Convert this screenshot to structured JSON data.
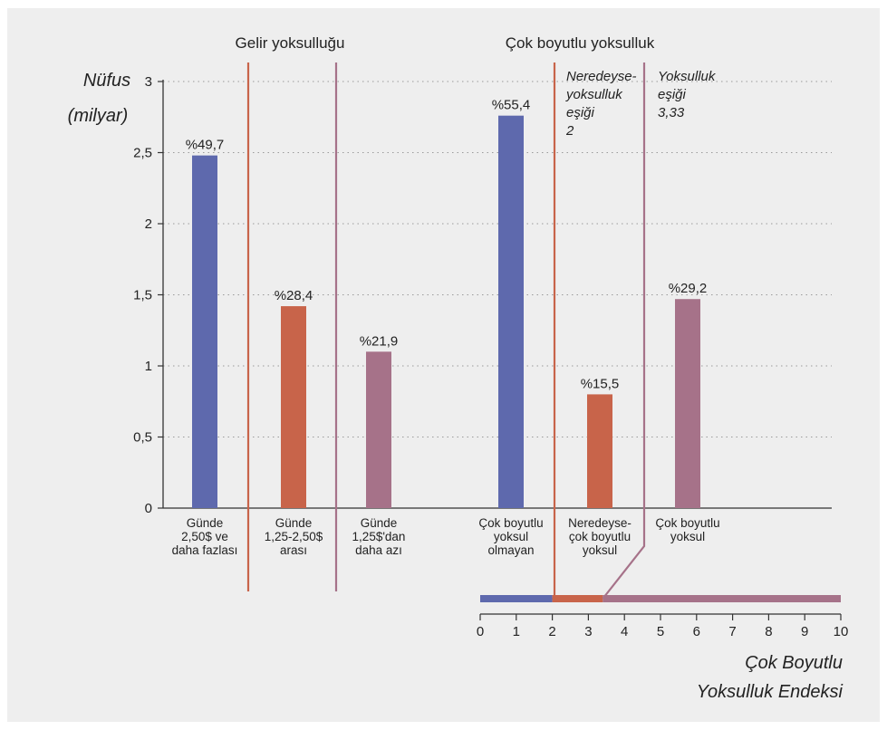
{
  "chart_data": {
    "type": "bar",
    "section_titles": [
      "Gelir yoksulluğu",
      "Çok boyutlu yoksulluk"
    ],
    "ylabel": [
      "Nüfus",
      "(milyar)"
    ],
    "ylim": [
      0,
      3
    ],
    "yticks": [
      "0",
      "0,5",
      "1",
      "1,5",
      "2",
      "2,5",
      "3"
    ],
    "grid": true,
    "bars": [
      {
        "lines": [
          "Günde",
          "2,50$ ve",
          "daha fazlası"
        ],
        "value": 2.48,
        "label": "%49,7",
        "color": "#5e69ad"
      },
      {
        "lines": [
          "Günde",
          "1,25-2,50$",
          "arası"
        ],
        "value": 1.42,
        "label": "%28,4",
        "color": "#c8644a"
      },
      {
        "lines": [
          "Günde",
          "1,25$'dan",
          "daha azı"
        ],
        "value": 1.1,
        "label": "%21,9",
        "color": "#a67289"
      },
      {
        "lines": [
          "Çok boyutlu",
          "yoksul",
          "olmayan"
        ],
        "value": 2.76,
        "label": "%55,4",
        "color": "#5e69ad"
      },
      {
        "lines": [
          "Neredeyse-",
          "çok boyutlu",
          "yoksul"
        ],
        "value": 0.8,
        "label": "%15,5",
        "color": "#c8644a"
      },
      {
        "lines": [
          "Çok boyutlu",
          "yoksul"
        ],
        "value": 1.47,
        "label": "%29,2",
        "color": "#a67289"
      }
    ],
    "thresholds": [
      {
        "lines": [
          "Neredeyse-",
          "yoksulluk",
          "eşiği",
          "2"
        ],
        "value": 2,
        "color": "#c8644a"
      },
      {
        "lines": [
          "Yoksulluk",
          "eşiği",
          "3,33"
        ],
        "value": 3.33,
        "color": "#a67289"
      }
    ],
    "index_axis": {
      "ticks": [
        "0",
        "1",
        "2",
        "3",
        "4",
        "5",
        "6",
        "7",
        "8",
        "9",
        "10"
      ],
      "label": [
        "Çok Boyutlu",
        "Yoksulluk Endeksi"
      ],
      "segments": [
        {
          "from": 0,
          "to": 2,
          "color": "#5e69ad"
        },
        {
          "from": 2,
          "to": 3.4,
          "color": "#c8644a"
        },
        {
          "from": 3.4,
          "to": 10,
          "color": "#a67289"
        }
      ]
    },
    "colors": {
      "blue": "#5e69ad",
      "orange": "#c8644a",
      "mauve": "#a67289"
    }
  }
}
